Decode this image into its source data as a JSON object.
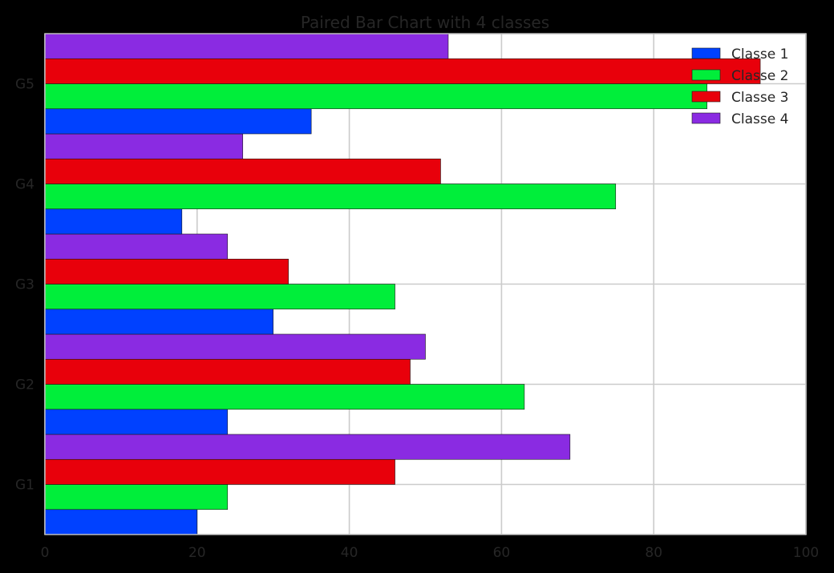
{
  "chart_data": {
    "type": "bar",
    "orientation": "horizontal",
    "title": "Paired Bar Chart with 4 classes",
    "xlabel": "",
    "ylabel": "",
    "categories": [
      "G1",
      "G2",
      "G3",
      "G4",
      "G5"
    ],
    "series": [
      {
        "name": "Classe 1",
        "color": "#0041ff",
        "values": [
          20,
          24,
          30,
          18,
          35
        ]
      },
      {
        "name": "Classe 2",
        "color": "#00ee3a",
        "values": [
          24,
          63,
          46,
          75,
          87
        ]
      },
      {
        "name": "Classe 3",
        "color": "#e8000b",
        "values": [
          46,
          48,
          32,
          52,
          94
        ]
      },
      {
        "name": "Classe 4",
        "color": "#8a2be2",
        "values": [
          69,
          50,
          24,
          26,
          53
        ]
      }
    ],
    "xlim": [
      0,
      100
    ],
    "xticks": [
      "0",
      "20",
      "40",
      "60",
      "80",
      "100"
    ],
    "grid": true,
    "legend_position": "top-right",
    "background_color": "#000000",
    "plot_background": "#ffffff"
  }
}
